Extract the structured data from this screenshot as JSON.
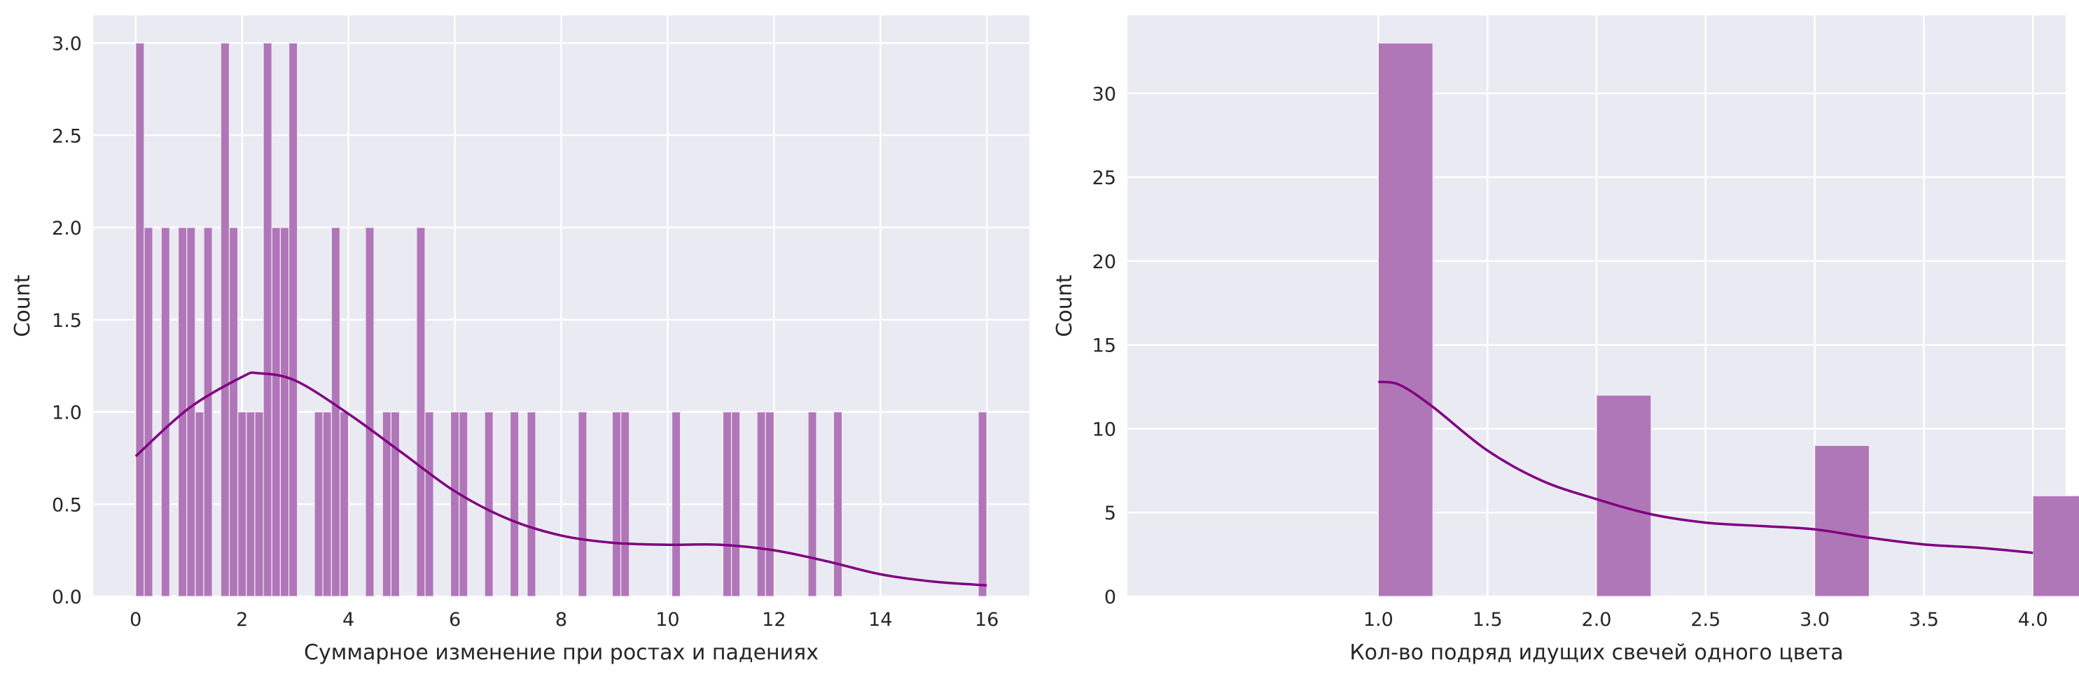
{
  "colors": {
    "background": "#eaeaf2",
    "grid": "#ffffff",
    "bar_fill": "#b077b8",
    "bar_edge": "#f4eaf6",
    "kde": "#800080"
  },
  "chart_data": [
    {
      "type": "bar",
      "subtype": "histogram_with_kde",
      "title": "",
      "xlabel": "Суммарное изменение при ростах и падениях",
      "ylabel": "Count",
      "xlim": [
        -0.8,
        16.8
      ],
      "ylim": [
        0,
        3.15
      ],
      "xticks": [
        0,
        2,
        4,
        6,
        8,
        10,
        12,
        14,
        16
      ],
      "xtick_labels": [
        "0",
        "2",
        "4",
        "6",
        "8",
        "10",
        "12",
        "14",
        "16"
      ],
      "yticks": [
        0,
        0.5,
        1.0,
        1.5,
        2.0,
        2.5,
        3.0
      ],
      "ytick_labels": [
        "0.0",
        "0.5",
        "1.0",
        "1.5",
        "2.0",
        "2.5",
        "3.0"
      ],
      "grid": true,
      "legend": "none",
      "bin_width": 0.16,
      "bins": [
        {
          "x": 0.0,
          "count": 3
        },
        {
          "x": 0.16,
          "count": 2
        },
        {
          "x": 0.48,
          "count": 2
        },
        {
          "x": 0.8,
          "count": 2
        },
        {
          "x": 0.96,
          "count": 2
        },
        {
          "x": 1.12,
          "count": 1
        },
        {
          "x": 1.28,
          "count": 2
        },
        {
          "x": 1.6,
          "count": 3
        },
        {
          "x": 1.76,
          "count": 2
        },
        {
          "x": 1.92,
          "count": 1
        },
        {
          "x": 2.08,
          "count": 1
        },
        {
          "x": 2.24,
          "count": 1
        },
        {
          "x": 2.4,
          "count": 3
        },
        {
          "x": 2.56,
          "count": 2
        },
        {
          "x": 2.72,
          "count": 2
        },
        {
          "x": 2.88,
          "count": 3
        },
        {
          "x": 3.36,
          "count": 1
        },
        {
          "x": 3.52,
          "count": 1
        },
        {
          "x": 3.68,
          "count": 2
        },
        {
          "x": 3.84,
          "count": 1
        },
        {
          "x": 4.32,
          "count": 2
        },
        {
          "x": 4.64,
          "count": 1
        },
        {
          "x": 4.8,
          "count": 1
        },
        {
          "x": 5.28,
          "count": 2
        },
        {
          "x": 5.44,
          "count": 1
        },
        {
          "x": 5.92,
          "count": 1
        },
        {
          "x": 6.08,
          "count": 1
        },
        {
          "x": 6.56,
          "count": 1
        },
        {
          "x": 7.04,
          "count": 1
        },
        {
          "x": 7.36,
          "count": 1
        },
        {
          "x": 8.32,
          "count": 1
        },
        {
          "x": 8.96,
          "count": 1
        },
        {
          "x": 9.12,
          "count": 1
        },
        {
          "x": 10.08,
          "count": 1
        },
        {
          "x": 11.04,
          "count": 1
        },
        {
          "x": 11.2,
          "count": 1
        },
        {
          "x": 11.68,
          "count": 1
        },
        {
          "x": 11.84,
          "count": 1
        },
        {
          "x": 12.64,
          "count": 1
        },
        {
          "x": 13.12,
          "count": 1
        },
        {
          "x": 15.84,
          "count": 1
        }
      ],
      "kde": {
        "x": [
          0.0,
          1.0,
          2.0,
          2.3,
          3.0,
          4.0,
          5.0,
          6.0,
          7.0,
          8.0,
          9.0,
          10.0,
          11.0,
          12.0,
          13.0,
          14.0,
          15.0,
          16.0
        ],
        "y": [
          0.76,
          1.02,
          1.19,
          1.21,
          1.17,
          0.99,
          0.78,
          0.57,
          0.42,
          0.33,
          0.29,
          0.28,
          0.28,
          0.25,
          0.19,
          0.12,
          0.08,
          0.06
        ]
      }
    },
    {
      "type": "bar",
      "subtype": "histogram_with_kde",
      "title": "",
      "xlabel": "Кол-во подряд идущих свечей одного цвета",
      "ylabel": "Count",
      "xlim": [
        -0.15,
        4.15
      ],
      "ylim": [
        0,
        34.65
      ],
      "xticks": [
        1.0,
        1.5,
        2.0,
        2.5,
        3.0,
        3.5,
        4.0
      ],
      "xtick_labels": [
        "1.0",
        "1.5",
        "2.0",
        "2.5",
        "3.0",
        "3.5",
        "4.0"
      ],
      "yticks": [
        0,
        5,
        10,
        15,
        20,
        25,
        30
      ],
      "ytick_labels": [
        "0",
        "5",
        "10",
        "15",
        "20",
        "25",
        "30"
      ],
      "grid": true,
      "legend": "none",
      "bin_width": 0.25,
      "bins": [
        {
          "x": 1.0,
          "count": 33
        },
        {
          "x": 2.0,
          "count": 12
        },
        {
          "x": 3.0,
          "count": 9
        },
        {
          "x": 4.0,
          "count": 6
        }
      ],
      "kde": {
        "x": [
          1.0,
          1.1,
          1.25,
          1.5,
          1.75,
          2.0,
          2.25,
          2.5,
          2.75,
          3.0,
          3.25,
          3.5,
          3.75,
          4.0
        ],
        "y": [
          12.8,
          12.6,
          11.3,
          8.7,
          6.9,
          5.8,
          4.9,
          4.4,
          4.2,
          4.0,
          3.5,
          3.1,
          2.9,
          2.6
        ]
      }
    }
  ]
}
